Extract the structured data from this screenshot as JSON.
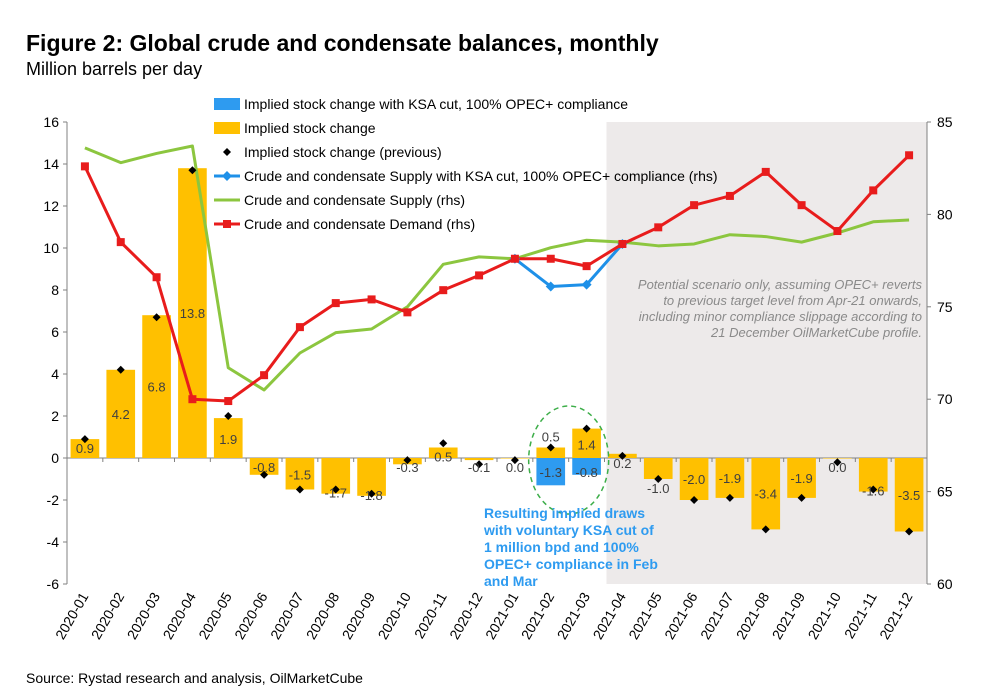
{
  "title": "Figure 2: Global crude and condensate balances, monthly",
  "subtitle": "Million barrels per day",
  "source": "Source: Rystad research and analysis, OilMarketCube",
  "scenario_note": [
    "Potential scenario only, assuming OPEC+ reverts",
    "to previous target level from Apr-21 onwards,",
    "including minor compliance slippage according to",
    "21 December OilMarketCube profile."
  ],
  "callout": [
    "Resulting implied draws",
    "with voluntary KSA cut of",
    "1 million bpd and 100%",
    "OPEC+ compliance in Feb",
    "and Mar"
  ],
  "colors": {
    "stock_bar": "#FFC000",
    "ksa_bar": "#2E9BF0",
    "supply_ksa": "#1E90E8",
    "supply": "#8CC63F",
    "demand": "#E81C1C",
    "shade": "#EDEAEA",
    "callout_text": "#2E9BF0",
    "callout_ring": "#3DAE49"
  },
  "chart_data": {
    "type": "bar",
    "categories": [
      "2020-01",
      "2020-02",
      "2020-03",
      "2020-04",
      "2020-05",
      "2020-06",
      "2020-07",
      "2020-08",
      "2020-09",
      "2020-10",
      "2020-11",
      "2020-12",
      "2021-01",
      "2021-02",
      "2021-03",
      "2021-04",
      "2021-05",
      "2021-06",
      "2021-07",
      "2021-08",
      "2021-09",
      "2021-10",
      "2021-11",
      "2021-12"
    ],
    "ylim": [
      -6,
      16
    ],
    "yticks": [
      -6,
      -4,
      -2,
      0,
      2,
      4,
      6,
      8,
      10,
      12,
      14,
      16
    ],
    "y2lim": [
      60,
      85
    ],
    "y2ticks": [
      60,
      65,
      70,
      75,
      80,
      85
    ],
    "legend": [
      {
        "label": "Implied stock change with KSA cut, 100% OPEC+ compliance",
        "marker": "bar-blue"
      },
      {
        "label": "Implied stock change",
        "marker": "bar-gold"
      },
      {
        "label": "Implied stock change (previous)",
        "marker": "diamond"
      },
      {
        "label": "Crude and condensate Supply with KSA cut, 100% OPEC+ compliance (rhs)",
        "marker": "line-blue"
      },
      {
        "label": "Crude and condensate Supply (rhs)",
        "marker": "line-green"
      },
      {
        "label": "Crude and condensate Demand (rhs)",
        "marker": "line-red"
      }
    ],
    "series": [
      {
        "name": "Implied stock change with KSA cut, 100% OPEC+ compliance",
        "type": "bar",
        "axis": "left",
        "values": [
          null,
          null,
          null,
          null,
          null,
          null,
          null,
          null,
          null,
          null,
          null,
          null,
          null,
          -1.3,
          -0.8,
          null,
          null,
          null,
          null,
          null,
          null,
          null,
          null,
          null
        ],
        "labels": [
          "",
          "",
          "",
          "",
          "",
          "",
          "",
          "",
          "",
          "",
          "",
          "",
          "",
          "-1.3",
          "-0.8",
          "",
          "",
          "",
          "",
          "",
          "",
          "",
          "",
          ""
        ]
      },
      {
        "name": "Implied stock change",
        "type": "bar",
        "axis": "left",
        "values": [
          0.9,
          4.2,
          6.8,
          13.8,
          1.9,
          -0.8,
          -1.5,
          -1.7,
          -1.8,
          -0.3,
          0.5,
          -0.1,
          0.0,
          0.5,
          1.4,
          0.2,
          -1.0,
          -2.0,
          -1.9,
          -3.4,
          -1.9,
          0.0,
          -1.6,
          -3.5
        ],
        "labels": [
          "0.9",
          "4.2",
          "6.8",
          "13.8",
          "1.9",
          "-0.8",
          "-1.5",
          "-1.7",
          "-1.8",
          "-0.3",
          "0.5",
          "-0.1",
          "0.0",
          "0.5",
          "1.4",
          "0.2",
          "-1.0",
          "-2.0",
          "-1.9",
          "-3.4",
          "-1.9",
          "0.0",
          "-1.6",
          "-3.5"
        ]
      },
      {
        "name": "Implied stock change (previous)",
        "type": "scatter",
        "axis": "left",
        "values": [
          0.9,
          4.2,
          6.7,
          13.7,
          2.0,
          -0.8,
          -1.5,
          -1.5,
          -1.7,
          -0.1,
          0.7,
          -0.3,
          -0.1,
          0.5,
          1.4,
          0.1,
          -1.0,
          -2.0,
          -1.9,
          -3.4,
          -1.9,
          -0.2,
          -1.5,
          -3.5
        ]
      },
      {
        "name": "Crude and condensate Supply with KSA cut, 100% OPEC+ compliance (rhs)",
        "type": "line",
        "axis": "right",
        "values": [
          null,
          null,
          null,
          null,
          null,
          null,
          null,
          null,
          null,
          null,
          null,
          null,
          77.6,
          76.1,
          76.2,
          78.4,
          null,
          null,
          null,
          null,
          null,
          null,
          null,
          null
        ]
      },
      {
        "name": "Crude and condensate Supply (rhs)",
        "type": "line",
        "axis": "right",
        "values": [
          83.6,
          82.8,
          83.3,
          83.7,
          71.7,
          70.5,
          72.5,
          73.6,
          73.8,
          75.0,
          77.3,
          77.7,
          77.6,
          78.2,
          78.6,
          78.5,
          78.3,
          78.4,
          78.9,
          78.8,
          78.5,
          79.0,
          79.6,
          79.7
        ]
      },
      {
        "name": "Crude and condensate Demand (rhs)",
        "type": "line",
        "axis": "right",
        "values": [
          82.6,
          78.5,
          76.6,
          70.0,
          69.9,
          71.3,
          73.9,
          75.2,
          75.4,
          74.7,
          75.9,
          76.7,
          77.6,
          77.6,
          77.2,
          78.4,
          79.3,
          80.5,
          81.0,
          82.3,
          80.5,
          79.1,
          81.3,
          83.2
        ]
      }
    ]
  }
}
